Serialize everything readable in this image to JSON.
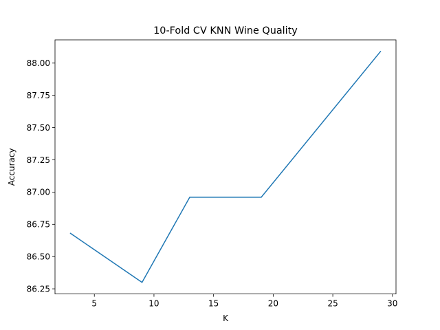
{
  "chart_data": {
    "type": "line",
    "title": "10-Fold CV  KNN Wine Quality",
    "xlabel": "K",
    "ylabel": "Accuracy",
    "x": [
      3,
      9,
      13,
      19,
      29
    ],
    "series": [
      {
        "values": [
          86.68,
          86.3,
          86.96,
          86.96,
          88.09
        ],
        "color": "#1f77b4"
      }
    ],
    "xlim": [
      1.7,
      30.3
    ],
    "ylim": [
      86.21,
      88.18
    ],
    "xticks": [
      5,
      10,
      15,
      20,
      25,
      30
    ],
    "xtick_labels": [
      "5",
      "10",
      "15",
      "20",
      "25",
      "30"
    ],
    "yticks": [
      86.25,
      86.5,
      86.75,
      87.0,
      87.25,
      87.5,
      87.75,
      88.0
    ],
    "ytick_labels": [
      "86.25",
      "86.50",
      "86.75",
      "87.00",
      "87.25",
      "87.50",
      "87.75",
      "88.00"
    ],
    "grid": false,
    "legend": false
  }
}
